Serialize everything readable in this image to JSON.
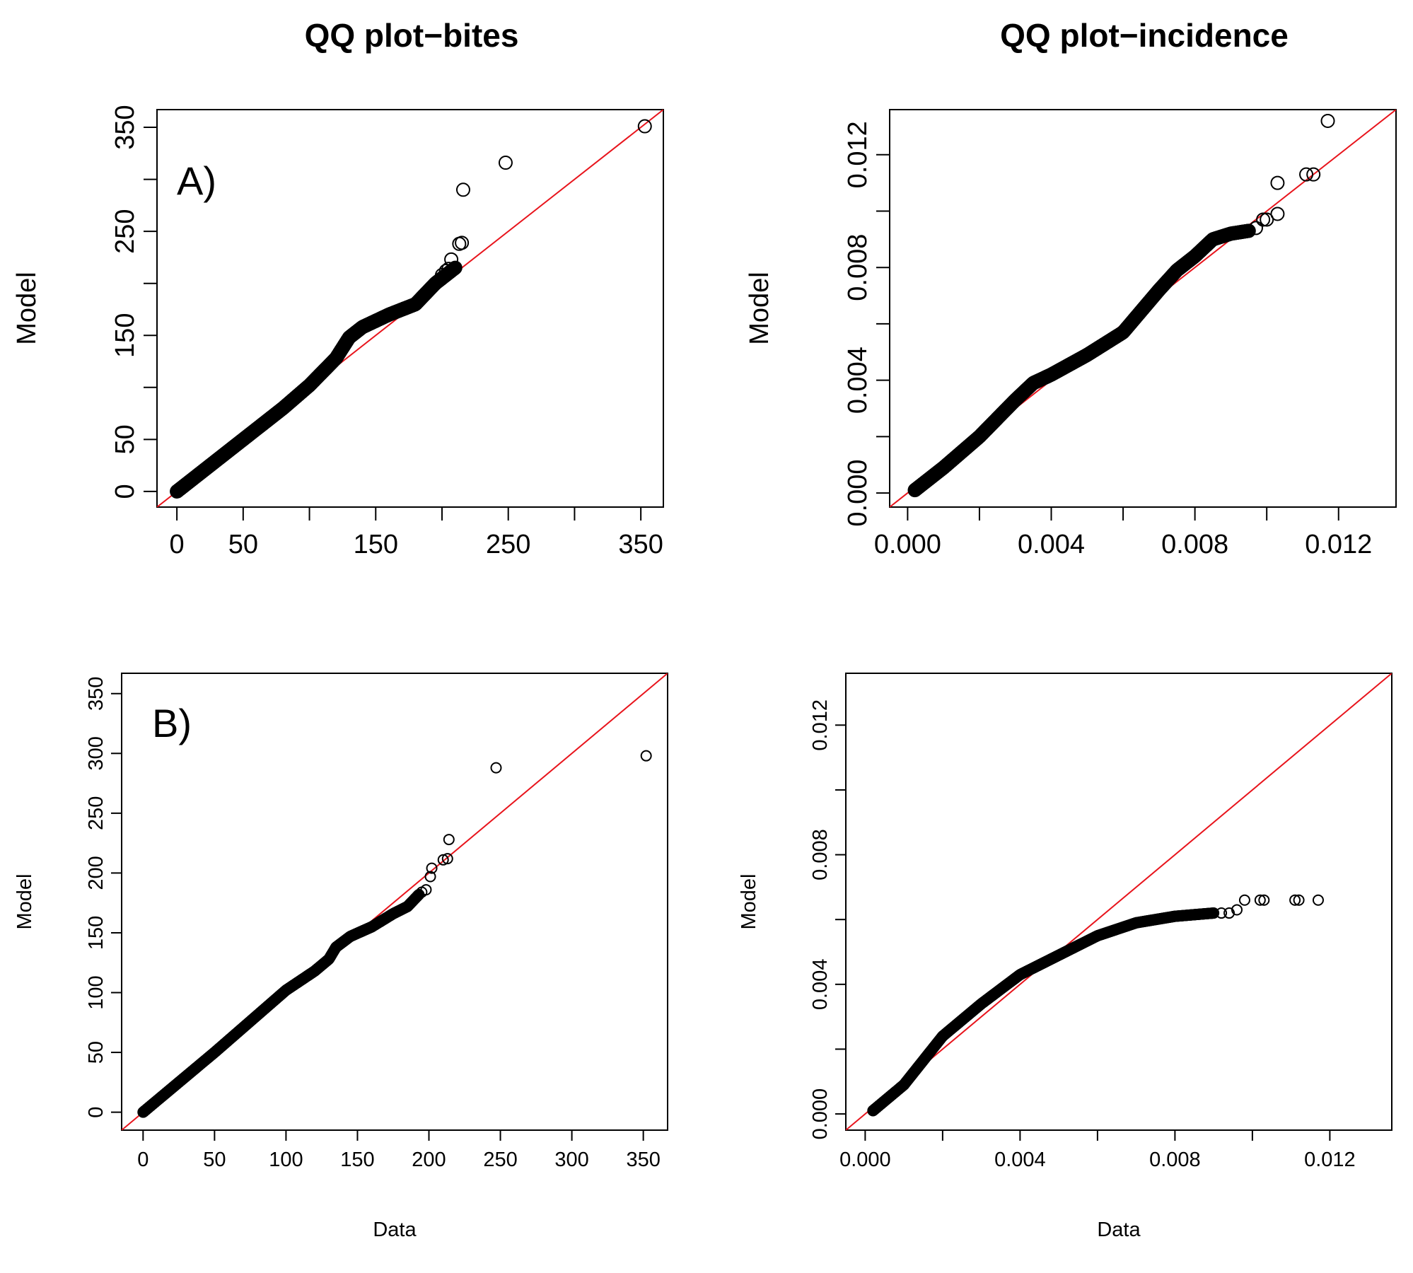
{
  "figure": {
    "title_left": "QQ plot−bites",
    "title_right": "QQ plot−incidence",
    "colors": {
      "points": "#000000",
      "reference_line": "#e8141c",
      "axes": "#000000"
    }
  },
  "chart_data": [
    {
      "id": "bites-A",
      "type": "scatter",
      "title": "QQ plot−bites",
      "panel_label": "A)",
      "xlabel": "",
      "ylabel": "Model",
      "xlim": [
        -15,
        367
      ],
      "ylim": [
        -15,
        367
      ],
      "x_ticks": [
        0,
        50,
        100,
        150,
        200,
        250,
        300,
        350
      ],
      "x_tick_labels": [
        "0",
        "50",
        "",
        "150",
        "",
        "250",
        "",
        "350"
      ],
      "y_ticks": [
        0,
        50,
        100,
        150,
        200,
        250,
        300,
        350
      ],
      "y_tick_labels": [
        "0",
        "50",
        "",
        "150",
        "",
        "250",
        "",
        "350"
      ],
      "reference_line": "y = x",
      "curve": [
        [
          0,
          0
        ],
        [
          40,
          40
        ],
        [
          80,
          80
        ],
        [
          100,
          102
        ],
        [
          120,
          128
        ],
        [
          130,
          148
        ],
        [
          140,
          158
        ],
        [
          160,
          170
        ],
        [
          180,
          180
        ],
        [
          195,
          200
        ],
        [
          210,
          215
        ]
      ],
      "curve_samples": 600,
      "outliers": [
        [
          200,
          208
        ],
        [
          203,
          212
        ],
        [
          205,
          214
        ],
        [
          207,
          223
        ],
        [
          213,
          238
        ],
        [
          215,
          239
        ],
        [
          216,
          290
        ],
        [
          248,
          316
        ],
        [
          353,
          351
        ]
      ]
    },
    {
      "id": "incidence-A",
      "type": "scatter",
      "title": "QQ plot−incidence",
      "panel_label": "",
      "xlabel": "",
      "ylabel": "Model",
      "xlim": [
        -0.0005,
        0.0136
      ],
      "ylim": [
        -0.0005,
        0.0136
      ],
      "x_ticks": [
        0,
        0.002,
        0.004,
        0.006,
        0.008,
        0.01,
        0.012
      ],
      "x_tick_labels": [
        "0.000",
        "",
        "0.004",
        "",
        "0.008",
        "",
        "0.012"
      ],
      "y_ticks": [
        0,
        0.002,
        0.004,
        0.006,
        0.008,
        0.01,
        0.012
      ],
      "y_tick_labels": [
        "0.000",
        "",
        "0.004",
        "",
        "0.008",
        "",
        "0.012"
      ],
      "reference_line": "y = x",
      "curve": [
        [
          0.0002,
          0.0001
        ],
        [
          0.001,
          0.0009
        ],
        [
          0.002,
          0.002
        ],
        [
          0.003,
          0.0033
        ],
        [
          0.0035,
          0.0039
        ],
        [
          0.004,
          0.0042
        ],
        [
          0.005,
          0.0049
        ],
        [
          0.006,
          0.0057
        ],
        [
          0.007,
          0.0072
        ],
        [
          0.0075,
          0.0079
        ],
        [
          0.008,
          0.0084
        ],
        [
          0.0085,
          0.009
        ],
        [
          0.009,
          0.0092
        ],
        [
          0.0095,
          0.0093
        ]
      ],
      "curve_samples": 600,
      "outliers": [
        [
          0.0097,
          0.0094
        ],
        [
          0.0099,
          0.0097
        ],
        [
          0.01,
          0.0097
        ],
        [
          0.0103,
          0.0099
        ],
        [
          0.0103,
          0.011
        ],
        [
          0.0111,
          0.0113
        ],
        [
          0.0113,
          0.0113
        ],
        [
          0.0117,
          0.0132
        ]
      ]
    },
    {
      "id": "bites-B",
      "type": "scatter",
      "title": "",
      "panel_label": "B)",
      "xlabel": "Data",
      "ylabel": "Model",
      "xlim": [
        -15,
        367
      ],
      "ylim": [
        -15,
        367
      ],
      "x_ticks": [
        0,
        50,
        100,
        150,
        200,
        250,
        300,
        350
      ],
      "x_tick_labels": [
        "0",
        "50",
        "100",
        "150",
        "200",
        "250",
        "300",
        "350"
      ],
      "y_ticks": [
        0,
        50,
        100,
        150,
        200,
        250,
        300,
        350
      ],
      "y_tick_labels": [
        "0",
        "50",
        "100",
        "150",
        "200",
        "250",
        "300",
        "350"
      ],
      "reference_line": "y = x",
      "curve": [
        [
          0,
          0
        ],
        [
          50,
          50
        ],
        [
          100,
          102
        ],
        [
          120,
          118
        ],
        [
          130,
          128
        ],
        [
          135,
          138
        ],
        [
          145,
          147
        ],
        [
          160,
          155
        ],
        [
          175,
          166
        ],
        [
          185,
          172
        ],
        [
          193,
          182
        ]
      ],
      "curve_samples": 600,
      "outliers": [
        [
          195,
          184
        ],
        [
          198,
          186
        ],
        [
          201,
          197
        ],
        [
          202,
          204
        ],
        [
          210,
          211
        ],
        [
          213,
          212
        ],
        [
          214,
          228
        ],
        [
          247,
          288
        ],
        [
          352,
          298
        ]
      ]
    },
    {
      "id": "incidence-B",
      "type": "scatter",
      "title": "",
      "panel_label": "",
      "xlabel": "Data",
      "ylabel": "Model",
      "xlim": [
        -0.0005,
        0.0136
      ],
      "ylim": [
        -0.0005,
        0.0136
      ],
      "x_ticks": [
        0,
        0.002,
        0.004,
        0.006,
        0.008,
        0.01,
        0.012
      ],
      "x_tick_labels": [
        "0.000",
        "",
        "0.004",
        "",
        "0.008",
        "",
        "0.012"
      ],
      "y_ticks": [
        0,
        0.002,
        0.004,
        0.006,
        0.008,
        0.01,
        0.012
      ],
      "y_tick_labels": [
        "0.000",
        "",
        "0.004",
        "",
        "0.008",
        "",
        "0.012"
      ],
      "reference_line": "y = x",
      "curve": [
        [
          0.0002,
          0.0001
        ],
        [
          0.001,
          0.0009
        ],
        [
          0.002,
          0.0024
        ],
        [
          0.003,
          0.0034
        ],
        [
          0.004,
          0.0043
        ],
        [
          0.005,
          0.0049
        ],
        [
          0.006,
          0.0055
        ],
        [
          0.007,
          0.0059
        ],
        [
          0.008,
          0.0061
        ],
        [
          0.009,
          0.0062
        ]
      ],
      "curve_samples": 600,
      "outliers": [
        [
          0.0092,
          0.0062
        ],
        [
          0.0094,
          0.0062
        ],
        [
          0.0096,
          0.0063
        ],
        [
          0.0098,
          0.0066
        ],
        [
          0.0102,
          0.0066
        ],
        [
          0.0103,
          0.0066
        ],
        [
          0.0111,
          0.0066
        ],
        [
          0.0112,
          0.0066
        ],
        [
          0.0117,
          0.0066
        ]
      ]
    }
  ]
}
